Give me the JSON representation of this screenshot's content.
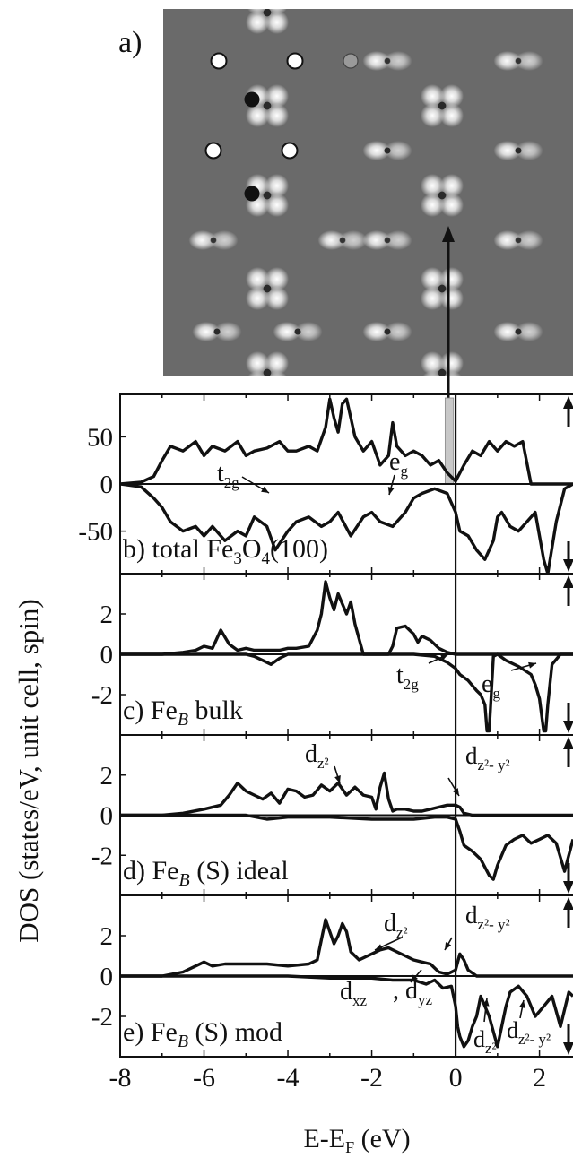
{
  "figure": {
    "panel_a_label": "a)",
    "ylabel": "DOS (states/eV, unit cell, spin)",
    "xlabel": "E-E",
    "xlabel_sub": "F",
    "xlabel_unit": " (eV)",
    "x_ticks": [
      -8,
      -6,
      -4,
      -2,
      0,
      2
    ],
    "colors": {
      "line": "#111111",
      "image_bg": "#6a6a6a",
      "highlight": "#c8c8c8"
    },
    "arrow_icons": [
      "spin-up-arrow-icon",
      "spin-down-arrow-icon"
    ]
  },
  "chart_data": [
    {
      "type": "line",
      "panel": "b",
      "label_prefix": "b)  total Fe",
      "label_sub1": "3",
      "label_mid": "O",
      "label_sub2": "4",
      "label_suffix": "(100)",
      "xlim": [
        -8,
        2.8
      ],
      "ylim": [
        -95,
        95
      ],
      "y_ticks": [
        50,
        0,
        -50
      ],
      "highlight_band": [
        -0.25,
        -0.05
      ],
      "series": [
        {
          "spin": "up",
          "x": [
            -8,
            -7.5,
            -7.2,
            -7.0,
            -6.8,
            -6.5,
            -6.2,
            -6.0,
            -5.8,
            -5.5,
            -5.2,
            -5.0,
            -4.8,
            -4.5,
            -4.2,
            -4.0,
            -3.8,
            -3.5,
            -3.3,
            -3.1,
            -3.0,
            -2.9,
            -2.8,
            -2.7,
            -2.6,
            -2.5,
            -2.4,
            -2.2,
            -2.0,
            -1.8,
            -1.6,
            -1.5,
            -1.4,
            -1.2,
            -1.0,
            -0.8,
            -0.6,
            -0.4,
            -0.2,
            0.0,
            0.2,
            0.4,
            0.6,
            0.8,
            1.0,
            1.2,
            1.4,
            1.6,
            1.8,
            2.0,
            2.2,
            2.5,
            2.8
          ],
          "y": [
            0,
            2,
            8,
            25,
            40,
            35,
            45,
            30,
            40,
            35,
            45,
            30,
            35,
            38,
            45,
            35,
            35,
            40,
            35,
            60,
            90,
            70,
            55,
            85,
            90,
            70,
            50,
            35,
            45,
            20,
            30,
            65,
            40,
            30,
            35,
            30,
            20,
            25,
            12,
            3,
            20,
            35,
            30,
            45,
            35,
            45,
            40,
            45,
            0,
            0,
            0,
            0,
            0
          ]
        },
        {
          "spin": "down",
          "x": [
            -8,
            -7.5,
            -7.2,
            -7.0,
            -6.8,
            -6.5,
            -6.2,
            -6.0,
            -5.8,
            -5.5,
            -5.2,
            -5.0,
            -4.8,
            -4.5,
            -4.3,
            -4.0,
            -3.8,
            -3.5,
            -3.2,
            -3.0,
            -2.8,
            -2.5,
            -2.2,
            -2.0,
            -1.8,
            -1.5,
            -1.2,
            -1.0,
            -0.8,
            -0.5,
            -0.2,
            0.0,
            0.1,
            0.3,
            0.5,
            0.7,
            0.9,
            1.0,
            1.1,
            1.3,
            1.5,
            1.7,
            1.9,
            2.1,
            2.2,
            2.4,
            2.6,
            2.8
          ],
          "y": [
            0,
            -3,
            -15,
            -25,
            -40,
            -50,
            -45,
            -55,
            -45,
            -60,
            -50,
            -55,
            -35,
            -45,
            -70,
            -50,
            -40,
            -35,
            -45,
            -40,
            -30,
            -55,
            -35,
            -30,
            -40,
            -45,
            -30,
            -15,
            -10,
            -5,
            -10,
            -30,
            -50,
            -55,
            -70,
            -80,
            -60,
            -35,
            -30,
            -45,
            -50,
            -40,
            -30,
            -80,
            -95,
            -40,
            -5,
            0
          ]
        }
      ]
    },
    {
      "type": "line",
      "panel": "c",
      "label_prefix": "c)  Fe",
      "label_sub1": "B",
      "label_suffix": " bulk",
      "xlim": [
        -8,
        2.8
      ],
      "ylim": [
        -4,
        4
      ],
      "y_ticks": [
        2,
        0,
        -2
      ],
      "annotations": [
        "t",
        "e",
        "t",
        "e"
      ],
      "annotation_subs": [
        "2g",
        "g",
        "2g",
        "g"
      ],
      "series": [
        {
          "spin": "up",
          "x": [
            -8,
            -7.0,
            -6.5,
            -6.2,
            -6.0,
            -5.8,
            -5.6,
            -5.4,
            -5.2,
            -5.0,
            -4.8,
            -4.5,
            -4.2,
            -4.0,
            -3.8,
            -3.5,
            -3.3,
            -3.2,
            -3.1,
            -3.0,
            -2.9,
            -2.8,
            -2.7,
            -2.6,
            -2.5,
            -2.4,
            -2.2,
            -2.0,
            -1.8,
            -1.6,
            -1.5,
            -1.4,
            -1.2,
            -1.0,
            -0.9,
            -0.8,
            -0.6,
            -0.4,
            -0.2,
            0.0,
            0.5,
            1.0,
            1.5,
            2.0,
            2.8
          ],
          "y": [
            0,
            0,
            0.1,
            0.2,
            0.4,
            0.3,
            1.2,
            0.5,
            0.2,
            0.3,
            0.2,
            0.2,
            0.2,
            0.3,
            0.3,
            0.4,
            1.2,
            2.0,
            3.6,
            2.8,
            2.2,
            3.0,
            2.5,
            2.0,
            2.6,
            1.5,
            0,
            0,
            0,
            0,
            0.4,
            1.3,
            1.4,
            1.0,
            0.6,
            0.9,
            0.7,
            0.3,
            0.1,
            0.0,
            0,
            0,
            0,
            0,
            0
          ]
        },
        {
          "spin": "down",
          "x": [
            -8,
            -6.0,
            -5.0,
            -4.8,
            -4.6,
            -4.4,
            -4.2,
            -4.0,
            -2.0,
            -1.0,
            -0.5,
            -0.2,
            0.0,
            0.1,
            0.3,
            0.5,
            0.6,
            0.7,
            0.75,
            0.8,
            0.85,
            0.9,
            1.0,
            1.2,
            1.5,
            1.8,
            1.9,
            2.0,
            2.1,
            2.15,
            2.2,
            2.3,
            2.5,
            2.8
          ],
          "y": [
            0,
            0,
            0,
            -0.1,
            -0.3,
            -0.5,
            -0.2,
            0,
            0,
            0,
            -0.1,
            -0.4,
            -0.7,
            -1.0,
            -1.3,
            -1.8,
            -2.0,
            -2.5,
            -3.8,
            -3.8,
            -2.0,
            -0.1,
            0,
            -0.3,
            -0.6,
            -1.0,
            -1.5,
            -2.2,
            -3.8,
            -3.8,
            -2.5,
            -0.5,
            0,
            0
          ]
        }
      ]
    },
    {
      "type": "line",
      "panel": "d",
      "label_prefix": "d)  Fe",
      "label_sub1": "B",
      "label_suffix": " (S) ideal",
      "xlim": [
        -8,
        2.8
      ],
      "ylim": [
        -4,
        4
      ],
      "y_ticks": [
        2,
        0,
        -2
      ],
      "annotations": [
        "d",
        "d"
      ],
      "annotation_subs": [
        "z²",
        "z²- y²"
      ],
      "series": [
        {
          "spin": "up",
          "x": [
            -8,
            -7.0,
            -6.5,
            -6.0,
            -5.6,
            -5.4,
            -5.2,
            -5.0,
            -4.8,
            -4.6,
            -4.4,
            -4.2,
            -4.0,
            -3.8,
            -3.6,
            -3.4,
            -3.2,
            -3.0,
            -2.8,
            -2.6,
            -2.4,
            -2.2,
            -2.0,
            -1.9,
            -1.8,
            -1.7,
            -1.6,
            -1.5,
            -1.4,
            -1.2,
            -1.0,
            -0.8,
            -0.6,
            -0.4,
            -0.2,
            0.0,
            0.1,
            0.2,
            0.4,
            1.0,
            2.8
          ],
          "y": [
            0,
            0,
            0.1,
            0.3,
            0.5,
            1.0,
            1.6,
            1.2,
            1.0,
            0.8,
            1.1,
            0.6,
            1.3,
            1.2,
            0.9,
            1.0,
            1.5,
            1.2,
            1.6,
            1.0,
            1.4,
            1.0,
            0.9,
            0.3,
            1.4,
            2.1,
            0.8,
            0.2,
            0.3,
            0.3,
            0.2,
            0.2,
            0.3,
            0.4,
            0.5,
            0.5,
            0.4,
            0.1,
            0,
            0,
            0
          ]
        },
        {
          "spin": "down",
          "x": [
            -8,
            -5.0,
            -4.5,
            -4.0,
            -3.0,
            -2.0,
            -1.5,
            -1.0,
            -0.5,
            -0.2,
            0.0,
            0.1,
            0.2,
            0.4,
            0.6,
            0.8,
            0.9,
            1.0,
            1.2,
            1.4,
            1.6,
            1.8,
            2.0,
            2.2,
            2.4,
            2.6,
            2.8
          ],
          "y": [
            0,
            0,
            -0.2,
            -0.1,
            -0.1,
            -0.2,
            -0.2,
            -0.2,
            -0.1,
            -0.1,
            -0.2,
            -0.8,
            -1.5,
            -1.8,
            -2.2,
            -3.0,
            -3.2,
            -2.5,
            -1.5,
            -1.2,
            -1.0,
            -1.4,
            -1.2,
            -1.0,
            -1.4,
            -2.8,
            -1.2
          ]
        }
      ]
    },
    {
      "type": "line",
      "panel": "e",
      "label_prefix": "e)  Fe",
      "label_sub1": "B",
      "label_suffix": " (S) mod",
      "xlim": [
        -8,
        2.8
      ],
      "ylim": [
        -4,
        4
      ],
      "y_ticks": [
        2,
        0,
        -2
      ],
      "annotations": [
        "d",
        "d",
        "d",
        "d",
        "d",
        "d"
      ],
      "annotation_subs": [
        "z²",
        "z²- y²",
        "xz",
        "yz",
        "z²",
        "z²- y²"
      ],
      "series": [
        {
          "spin": "up",
          "x": [
            -8,
            -7.0,
            -6.5,
            -6.2,
            -6.0,
            -5.8,
            -5.5,
            -5.0,
            -4.5,
            -4.0,
            -3.5,
            -3.3,
            -3.2,
            -3.1,
            -3.0,
            -2.9,
            -2.8,
            -2.7,
            -2.6,
            -2.5,
            -2.3,
            -2.0,
            -1.8,
            -1.6,
            -1.4,
            -1.2,
            -1.0,
            -0.8,
            -0.6,
            -0.4,
            -0.2,
            0.0,
            0.1,
            0.2,
            0.3,
            0.5,
            1.0,
            2.8
          ],
          "y": [
            0,
            0,
            0.2,
            0.5,
            0.7,
            0.5,
            0.6,
            0.6,
            0.6,
            0.5,
            0.6,
            0.8,
            1.8,
            2.8,
            2.2,
            1.6,
            2.0,
            2.6,
            2.2,
            1.2,
            0.8,
            1.1,
            1.3,
            1.4,
            1.2,
            1.0,
            0.8,
            0.7,
            0.6,
            0.2,
            0.1,
            0.3,
            1.1,
            0.8,
            0.3,
            0,
            0,
            0
          ]
        },
        {
          "spin": "down",
          "x": [
            -8,
            -6.0,
            -4.0,
            -3.0,
            -2.0,
            -1.5,
            -1.0,
            -0.7,
            -0.5,
            -0.3,
            -0.1,
            0.0,
            0.05,
            0.1,
            0.2,
            0.3,
            0.4,
            0.5,
            0.6,
            0.8,
            1.0,
            1.1,
            1.2,
            1.3,
            1.5,
            1.7,
            1.9,
            2.1,
            2.3,
            2.5,
            2.7,
            2.8
          ],
          "y": [
            0,
            0,
            0,
            -0.1,
            -0.1,
            -0.2,
            -0.2,
            -0.4,
            -0.2,
            -0.6,
            -0.5,
            -1.5,
            -2.5,
            -3.0,
            -3.5,
            -3.2,
            -2.5,
            -2.0,
            -1.0,
            -2.0,
            -3.5,
            -2.5,
            -1.5,
            -0.8,
            -0.5,
            -1.0,
            -2.0,
            -1.5,
            -1.0,
            -2.5,
            -0.8,
            -1.0
          ]
        }
      ]
    }
  ]
}
